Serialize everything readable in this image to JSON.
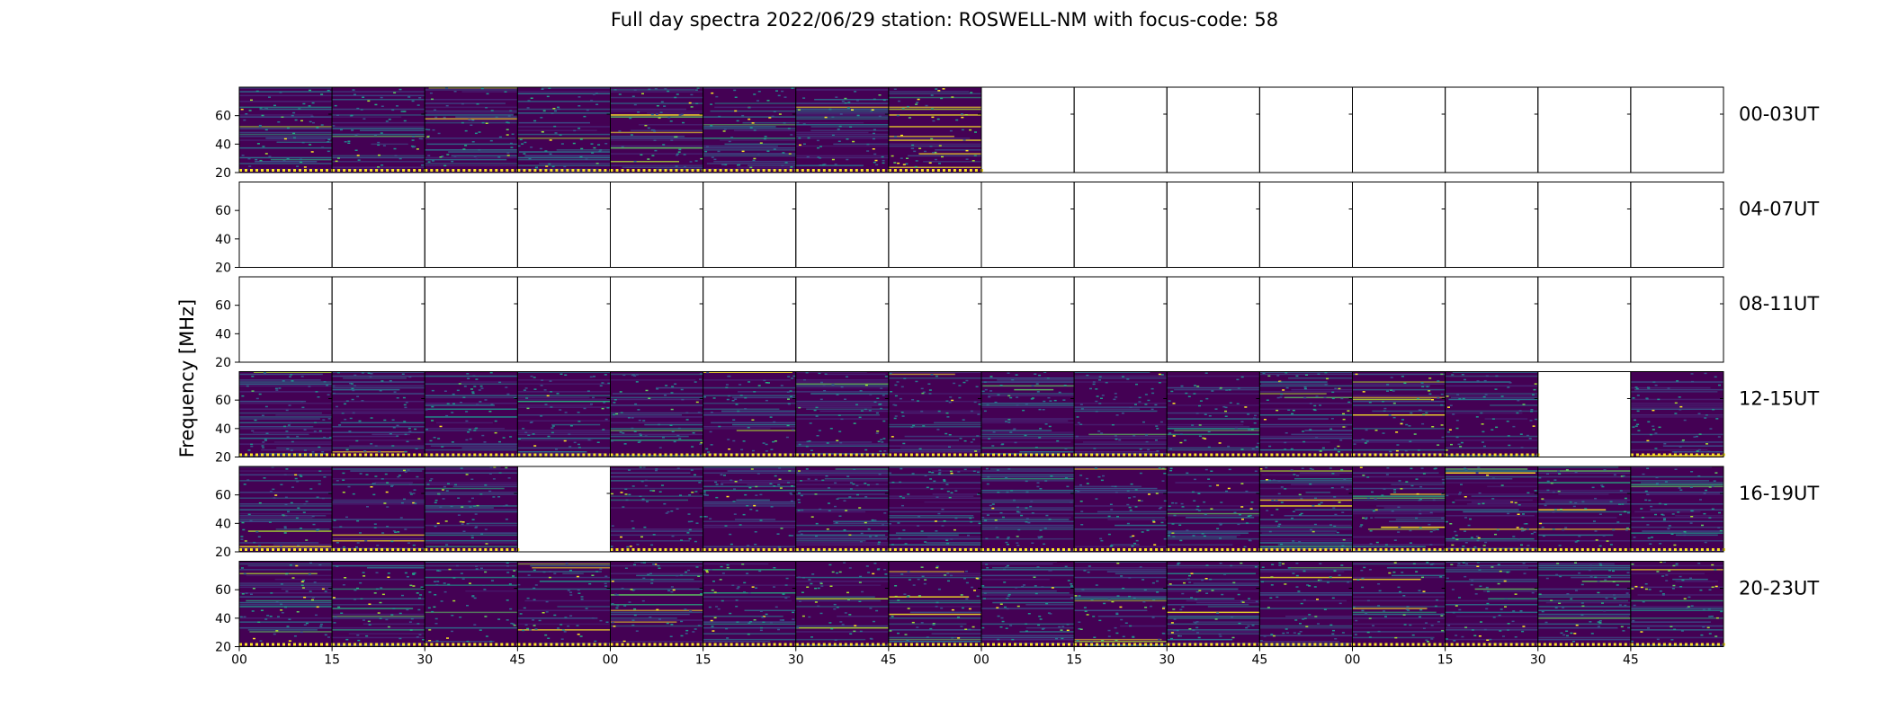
{
  "title": "Full day spectra 2022/06/29 station: ROSWELL-NM with focus-code: 58",
  "chart_data": {
    "type": "heatmap",
    "title": "Full day spectra 2022/06/29 station: ROSWELL-NM with focus-code: 58",
    "ylabel": "Frequency [MHz]",
    "xlabel": "",
    "y_ticks": [
      "20",
      "40",
      "60"
    ],
    "ylim": [
      20,
      80
    ],
    "x_ticks": [
      "00",
      "15",
      "30",
      "45",
      "00",
      "15",
      "30",
      "45",
      "00",
      "15",
      "30",
      "45",
      "00",
      "15",
      "30",
      "45"
    ],
    "colormap": "viridis",
    "colors": {
      "low": "#440154",
      "mid_low": "#3b528b",
      "mid": "#21918c",
      "mid_high": "#5ec962",
      "high": "#fde725"
    },
    "rows": [
      {
        "label": "00-03UT",
        "panels": [
          {
            "data": true,
            "activity": 0.3
          },
          {
            "data": true,
            "activity": 0.15
          },
          {
            "data": true,
            "activity": 0.18
          },
          {
            "data": true,
            "activity": 0.12
          },
          {
            "data": true,
            "activity": 0.25
          },
          {
            "data": true,
            "activity": 0.2
          },
          {
            "data": true,
            "activity": 0.22
          },
          {
            "data": true,
            "activity": 0.45
          },
          {
            "data": false
          },
          {
            "data": false
          },
          {
            "data": false
          },
          {
            "data": false
          },
          {
            "data": false
          },
          {
            "data": false
          },
          {
            "data": false
          },
          {
            "data": false
          }
        ]
      },
      {
        "label": "04-07UT",
        "panels": [
          {
            "data": false
          },
          {
            "data": false
          },
          {
            "data": false
          },
          {
            "data": false
          },
          {
            "data": false
          },
          {
            "data": false
          },
          {
            "data": false
          },
          {
            "data": false
          },
          {
            "data": false
          },
          {
            "data": false
          },
          {
            "data": false
          },
          {
            "data": false
          },
          {
            "data": false
          },
          {
            "data": false
          },
          {
            "data": false
          },
          {
            "data": false
          }
        ]
      },
      {
        "label": "08-11UT",
        "panels": [
          {
            "data": false
          },
          {
            "data": false
          },
          {
            "data": false
          },
          {
            "data": false
          },
          {
            "data": false
          },
          {
            "data": false
          },
          {
            "data": false
          },
          {
            "data": false
          },
          {
            "data": false
          },
          {
            "data": false
          },
          {
            "data": false
          },
          {
            "data": false
          },
          {
            "data": false
          },
          {
            "data": false
          },
          {
            "data": false
          },
          {
            "data": false
          }
        ]
      },
      {
        "label": "12-15UT",
        "panels": [
          {
            "data": true,
            "activity": 0.05
          },
          {
            "data": true,
            "activity": 0.05
          },
          {
            "data": true,
            "activity": 0.06
          },
          {
            "data": true,
            "activity": 0.06
          },
          {
            "data": true,
            "activity": 0.1
          },
          {
            "data": true,
            "activity": 0.08
          },
          {
            "data": true,
            "activity": 0.08
          },
          {
            "data": true,
            "activity": 0.12
          },
          {
            "data": true,
            "activity": 0.08
          },
          {
            "data": true,
            "activity": 0.1
          },
          {
            "data": true,
            "activity": 0.3
          },
          {
            "data": true,
            "activity": 0.28
          },
          {
            "data": true,
            "activity": 0.3
          },
          {
            "data": true,
            "activity": 0.2
          },
          {
            "data": false
          },
          {
            "data": true,
            "activity": 0.25
          }
        ]
      },
      {
        "label": "16-19UT",
        "panels": [
          {
            "data": true,
            "activity": 0.15
          },
          {
            "data": true,
            "activity": 0.18
          },
          {
            "data": true,
            "activity": 0.16
          },
          {
            "data": false
          },
          {
            "data": true,
            "activity": 0.12
          },
          {
            "data": true,
            "activity": 0.2
          },
          {
            "data": true,
            "activity": 0.12
          },
          {
            "data": true,
            "activity": 0.14
          },
          {
            "data": true,
            "activity": 0.14
          },
          {
            "data": true,
            "activity": 0.16
          },
          {
            "data": true,
            "activity": 0.16
          },
          {
            "data": true,
            "activity": 0.18
          },
          {
            "data": true,
            "activity": 0.18
          },
          {
            "data": true,
            "activity": 0.22
          },
          {
            "data": true,
            "activity": 0.22
          },
          {
            "data": true,
            "activity": 0.18
          }
        ]
      },
      {
        "label": "20-23UT",
        "panels": [
          {
            "data": true,
            "activity": 0.22
          },
          {
            "data": true,
            "activity": 0.3
          },
          {
            "data": true,
            "activity": 0.2
          },
          {
            "data": true,
            "activity": 0.16
          },
          {
            "data": true,
            "activity": 0.18
          },
          {
            "data": true,
            "activity": 0.22
          },
          {
            "data": true,
            "activity": 0.3
          },
          {
            "data": true,
            "activity": 0.5
          },
          {
            "data": true,
            "activity": 0.15
          },
          {
            "data": true,
            "activity": 0.18
          },
          {
            "data": true,
            "activity": 0.22
          },
          {
            "data": true,
            "activity": 0.22
          },
          {
            "data": true,
            "activity": 0.18
          },
          {
            "data": true,
            "activity": 0.3
          },
          {
            "data": true,
            "activity": 0.25
          },
          {
            "data": true,
            "activity": 0.35
          }
        ]
      }
    ]
  }
}
